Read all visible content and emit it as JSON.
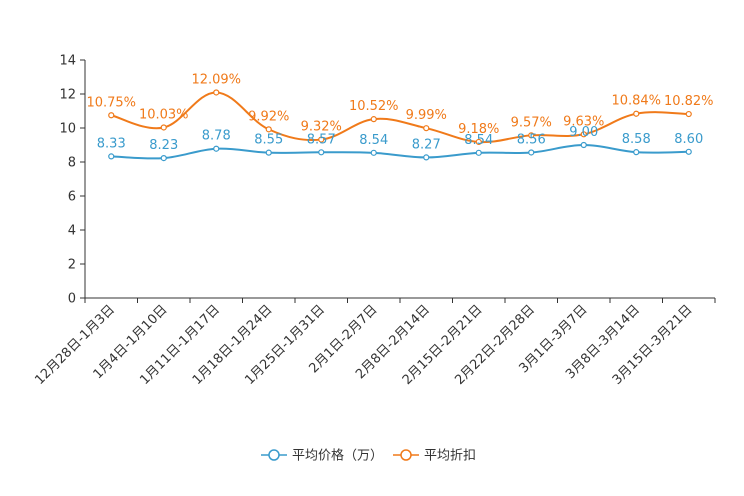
{
  "chart_data": {
    "type": "line",
    "categories": [
      "12月28日-1月3日",
      "1月4日-1月10日",
      "1月11日-1月17日",
      "1月18日-1月24日",
      "1月25日-1月31日",
      "2月1日-2月7日",
      "2月8日-2月14日",
      "2月15日-2月21日",
      "2月22日-2月28日",
      "3月1日-3月7日",
      "3月8日-3月14日",
      "3月15日-3月21日"
    ],
    "series": [
      {
        "name": "平均价格（万）",
        "color": "#3a9bcc",
        "values": [
          8.33,
          8.23,
          8.78,
          8.55,
          8.57,
          8.54,
          8.27,
          8.54,
          8.56,
          9.0,
          8.58,
          8.6
        ],
        "labels": [
          "8.33",
          "8.23",
          "8.78",
          "8.55",
          "8.57",
          "8.54",
          "8.27",
          "8.54",
          "8.56",
          "9.00",
          "8.58",
          "8.60"
        ]
      },
      {
        "name": "平均折扣",
        "color": "#f07a1a",
        "values": [
          10.75,
          10.03,
          12.09,
          9.92,
          9.32,
          10.52,
          9.99,
          9.18,
          9.57,
          9.63,
          10.84,
          10.82
        ],
        "labels": [
          "10.75%",
          "10.03%",
          "12.09%",
          "9.92%",
          "9.32%",
          "10.52%",
          "9.99%",
          "9.18%",
          "9.57%",
          "9.63%",
          "10.84%",
          "10.82%"
        ]
      }
    ],
    "yaxis": {
      "ticks": [
        "0",
        "2",
        "4",
        "6",
        "8",
        "10",
        "12",
        "14"
      ],
      "min": 0,
      "max": 14,
      "step": 2
    },
    "legend": "bottom-center",
    "grid": false
  }
}
